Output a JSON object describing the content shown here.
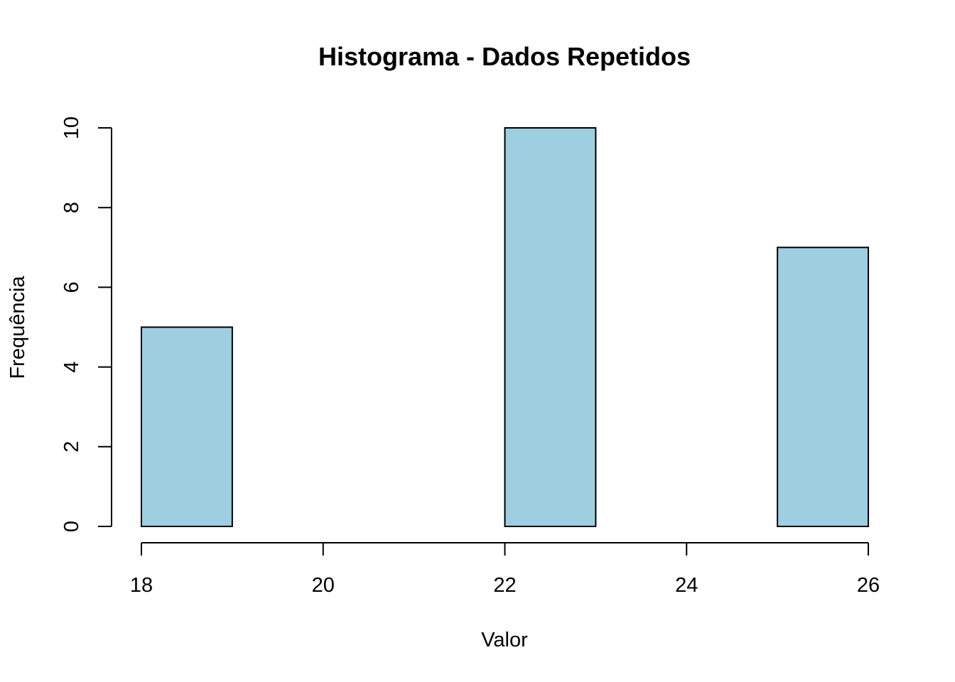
{
  "chart_data": {
    "type": "bar",
    "subtype": "histogram",
    "title": "Histograma - Dados Repetidos",
    "xlabel": "Valor",
    "ylabel": "Frequência",
    "bins": [
      {
        "start": 18,
        "end": 19,
        "count": 5
      },
      {
        "start": 19,
        "end": 20,
        "count": 0
      },
      {
        "start": 20,
        "end": 21,
        "count": 0
      },
      {
        "start": 21,
        "end": 22,
        "count": 0
      },
      {
        "start": 22,
        "end": 23,
        "count": 10
      },
      {
        "start": 23,
        "end": 24,
        "count": 0
      },
      {
        "start": 24,
        "end": 25,
        "count": 0
      },
      {
        "start": 25,
        "end": 26,
        "count": 7
      }
    ],
    "xlim": [
      18,
      26
    ],
    "ylim": [
      0,
      10
    ],
    "x_ticks": [
      18,
      20,
      22,
      24,
      26
    ],
    "y_ticks": [
      0,
      2,
      4,
      6,
      8,
      10
    ],
    "bar_color": "#9ecfe0",
    "border_color": "#000000",
    "grid": false
  }
}
